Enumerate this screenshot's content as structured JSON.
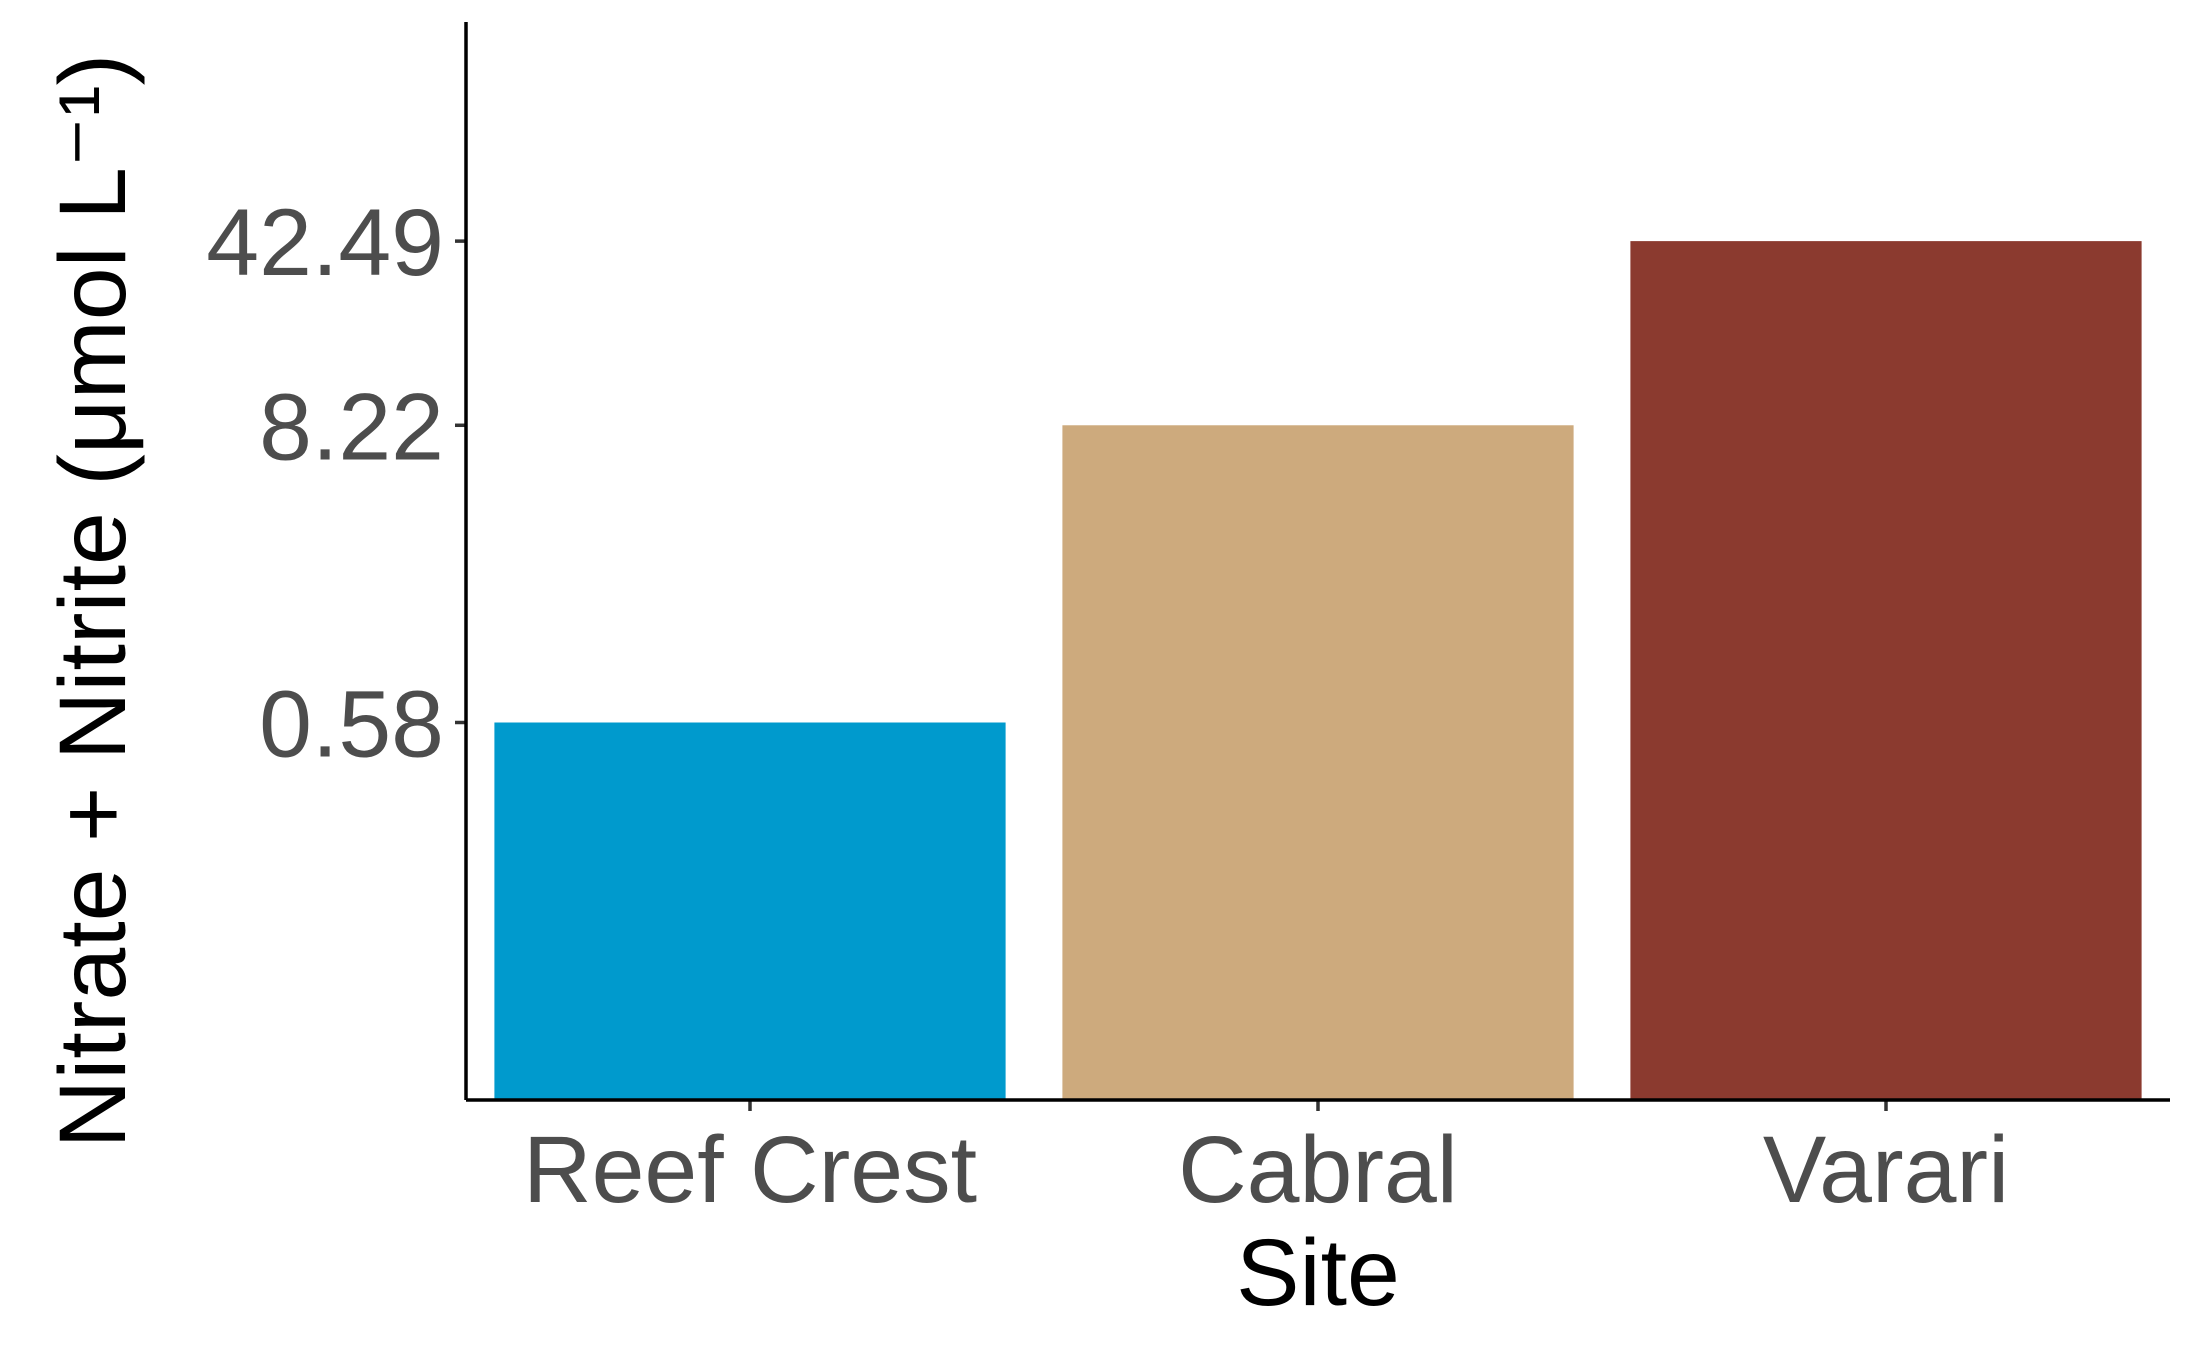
{
  "chart_data": {
    "type": "bar",
    "categories": [
      "Reef Crest",
      "Cabral",
      "Varari"
    ],
    "values": [
      0.58,
      8.22,
      42.49
    ],
    "colors": [
      "#009ACD",
      "#CDAA7D",
      "#8B3A2F"
    ],
    "xlabel": "Site",
    "ylabel": "Nitrate + Nitrite (μmol L⁻¹)",
    "y_scale": "log",
    "yticks": [
      0.58,
      8.22,
      42.49
    ],
    "ytick_labels": [
      "0.58",
      "8.22",
      "42.49"
    ],
    "y_baseline": 0.02,
    "y_axis_top": 300,
    "grid": false,
    "legend": "none"
  }
}
